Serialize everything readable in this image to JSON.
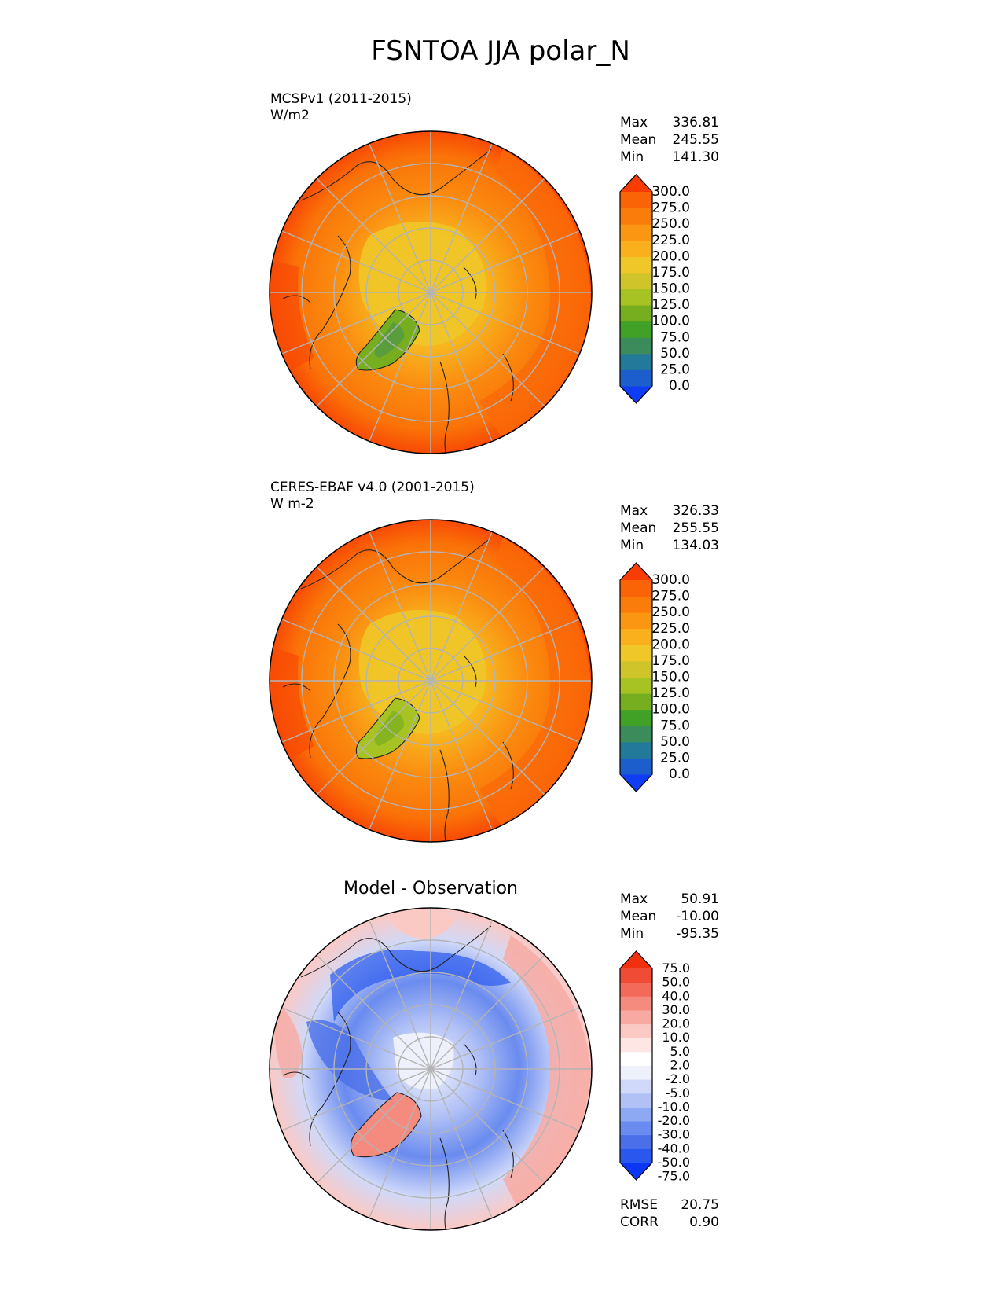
{
  "figure_title": "FSNTOA JJA polar_N",
  "colors": {
    "main_scale": [
      "#0f3cf5",
      "#1c5fcc",
      "#22799a",
      "#3b8c5a",
      "#41a026",
      "#76ae20",
      "#a7c223",
      "#cfc52a",
      "#efc728",
      "#f9b01c",
      "#fb9612",
      "#fa7d0b",
      "#fb6307",
      "#f83c04"
    ],
    "diff_scale": [
      "#0a37f5",
      "#2a58ee",
      "#4a6fe9",
      "#6a8bef",
      "#8ea9f3",
      "#b1c1f6",
      "#d0d9f9",
      "#eef1fc",
      "#ffffff",
      "#fde6e4",
      "#fbc9c4",
      "#f8aaa2",
      "#f58a7e",
      "#f36a5a",
      "#ef4b35",
      "#f1300e"
    ],
    "grid": "#b4b4b4",
    "coast": "#222222"
  },
  "chart_data": [
    {
      "type": "heatmap",
      "projection": "polar stereographic (north)",
      "panel_title": "",
      "source_label": "MCSPv1 (2011-2015)",
      "units": "W/m2",
      "stats": [
        {
          "label": "Max",
          "value": "336.81"
        },
        {
          "label": "Mean",
          "value": "245.55"
        },
        {
          "label": "Min",
          "value": "141.30"
        }
      ],
      "colorbar": {
        "levels": [
          0,
          25,
          50,
          75,
          100,
          125,
          150,
          175,
          200,
          225,
          250,
          275,
          300
        ],
        "tick_labels": [
          "300.0",
          "275.0",
          "250.0",
          "225.0",
          "200.0",
          "175.0",
          "150.0",
          "125.0",
          "100.0",
          "75.0",
          "50.0",
          "25.0",
          "0.0"
        ],
        "extend": "both"
      },
      "extra_stats": []
    },
    {
      "type": "heatmap",
      "projection": "polar stereographic (north)",
      "panel_title": "",
      "source_label": "CERES-EBAF v4.0 (2001-2015)",
      "units": "W m-2",
      "stats": [
        {
          "label": "Max",
          "value": "326.33"
        },
        {
          "label": "Mean",
          "value": "255.55"
        },
        {
          "label": "Min",
          "value": "134.03"
        }
      ],
      "colorbar": {
        "levels": [
          0,
          25,
          50,
          75,
          100,
          125,
          150,
          175,
          200,
          225,
          250,
          275,
          300
        ],
        "tick_labels": [
          "300.0",
          "275.0",
          "250.0",
          "225.0",
          "200.0",
          "175.0",
          "150.0",
          "125.0",
          "100.0",
          "75.0",
          "50.0",
          "25.0",
          "0.0"
        ],
        "extend": "both"
      },
      "extra_stats": []
    },
    {
      "type": "heatmap",
      "projection": "polar stereographic (north)",
      "panel_title": "Model - Observation",
      "source_label": "",
      "units": "",
      "stats": [
        {
          "label": "Max",
          "value": "50.91"
        },
        {
          "label": "Mean",
          "value": "-10.00"
        },
        {
          "label": "Min",
          "value": "-95.35"
        }
      ],
      "colorbar": {
        "levels": [
          -75,
          -50,
          -40,
          -30,
          -20,
          -10,
          -5,
          -2,
          2,
          5,
          10,
          20,
          30,
          40,
          50,
          75
        ],
        "tick_labels": [
          "75.0",
          "50.0",
          "40.0",
          "30.0",
          "20.0",
          "10.0",
          "5.0",
          "2.0",
          "-2.0",
          "-5.0",
          "-10.0",
          "-20.0",
          "-30.0",
          "-40.0",
          "-50.0",
          "-75.0"
        ],
        "extend": "both"
      },
      "extra_stats": [
        {
          "label": "RMSE",
          "value": "20.75"
        },
        {
          "label": "CORR",
          "value": "0.90"
        }
      ]
    }
  ]
}
